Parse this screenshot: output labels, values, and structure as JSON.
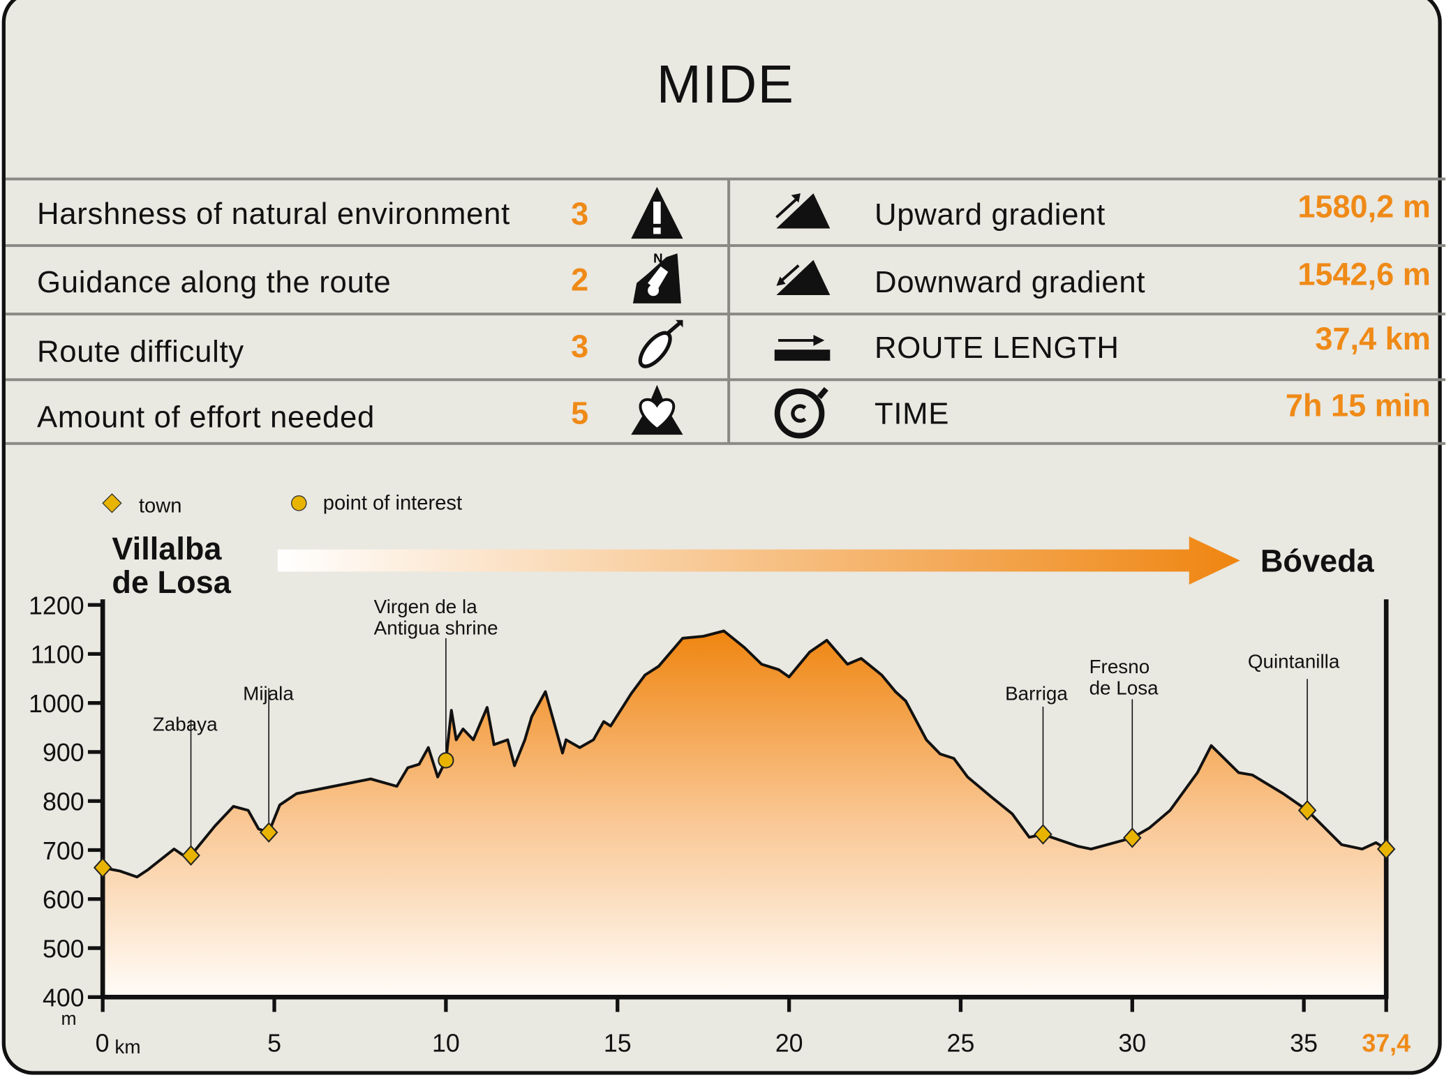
{
  "title": "MIDE",
  "mide": [
    {
      "label": "Harshness of natural environment",
      "value": "3",
      "icon": "warning-triangle-icon"
    },
    {
      "label": "Guidance along the route",
      "value": "2",
      "icon": "compass-map-icon"
    },
    {
      "label": "Route difficulty",
      "value": "3",
      "icon": "footprint-icon"
    },
    {
      "label": "Amount of effort needed",
      "value": "5",
      "icon": "heart-mountain-icon"
    }
  ],
  "stats": [
    {
      "label": "Upward gradient",
      "value": "1580,2 m",
      "icon": "upward-slope-icon"
    },
    {
      "label": "Downward gradient",
      "value": "1542,6 m",
      "icon": "downward-slope-icon"
    },
    {
      "label": "ROUTE LENGTH",
      "value": "37,4 km",
      "icon": "route-length-arrow-icon"
    },
    {
      "label": "TIME",
      "value": "7h 15 min",
      "icon": "stopwatch-icon"
    }
  ],
  "colors": {
    "accent": "#ef8a17",
    "marker": "#e8b400",
    "background": "#e9e8e1"
  },
  "chart_data": {
    "type": "area",
    "legend": [
      {
        "symbol": "diamond",
        "label": "town"
      },
      {
        "symbol": "circle",
        "label": "point of interest"
      }
    ],
    "legend_placement": "top-left",
    "start": "Villalba de Losa",
    "end": "Bóveda",
    "ylabel": "m",
    "xlabel": "km",
    "ylim": [
      400,
      1200
    ],
    "yticks": [
      "1200",
      "1100",
      "1000",
      "900",
      "800",
      "700",
      "600",
      "500",
      "400"
    ],
    "xlim": [
      0,
      37.4
    ],
    "xticks": [
      "0",
      "5",
      "10",
      "15",
      "20",
      "25",
      "30",
      "35"
    ],
    "xend_label": "37,4",
    "profile": [
      [
        0,
        664
      ],
      [
        0.51,
        657
      ],
      [
        1.0,
        645
      ],
      [
        1.32,
        660
      ],
      [
        2.08,
        702
      ],
      [
        2.35,
        689
      ],
      [
        2.57,
        689
      ],
      [
        3.0,
        726
      ],
      [
        3.27,
        749
      ],
      [
        3.81,
        789
      ],
      [
        4.24,
        781
      ],
      [
        4.54,
        743
      ],
      [
        4.84,
        736
      ],
      [
        5.16,
        792
      ],
      [
        5.65,
        815
      ],
      [
        7.81,
        845
      ],
      [
        8.57,
        830
      ],
      [
        8.89,
        868
      ],
      [
        9.22,
        875
      ],
      [
        9.49,
        909
      ],
      [
        9.76,
        849
      ],
      [
        10.0,
        883
      ],
      [
        10.16,
        985
      ],
      [
        10.3,
        925
      ],
      [
        10.5,
        947
      ],
      [
        10.8,
        925
      ],
      [
        11.2,
        991
      ],
      [
        11.4,
        915
      ],
      [
        11.8,
        925
      ],
      [
        12.0,
        872
      ],
      [
        12.3,
        925
      ],
      [
        12.5,
        972
      ],
      [
        12.9,
        1023
      ],
      [
        13.4,
        898
      ],
      [
        13.5,
        925
      ],
      [
        13.9,
        909
      ],
      [
        14.3,
        925
      ],
      [
        14.6,
        962
      ],
      [
        14.8,
        953
      ],
      [
        15.4,
        1019
      ],
      [
        15.8,
        1057
      ],
      [
        16.2,
        1075
      ],
      [
        16.9,
        1132
      ],
      [
        17.5,
        1136
      ],
      [
        18.1,
        1147
      ],
      [
        18.7,
        1113
      ],
      [
        19.2,
        1079
      ],
      [
        19.7,
        1068
      ],
      [
        20.0,
        1053
      ],
      [
        20.6,
        1104
      ],
      [
        21.1,
        1128
      ],
      [
        21.7,
        1079
      ],
      [
        22.1,
        1091
      ],
      [
        22.7,
        1057
      ],
      [
        23.1,
        1023
      ],
      [
        23.4,
        1004
      ],
      [
        24.0,
        925
      ],
      [
        24.4,
        896
      ],
      [
        24.8,
        887
      ],
      [
        25.2,
        849
      ],
      [
        25.9,
        808
      ],
      [
        26.5,
        774
      ],
      [
        27.0,
        726
      ],
      [
        27.4,
        732
      ],
      [
        28.4,
        708
      ],
      [
        28.8,
        702
      ],
      [
        30.0,
        725
      ],
      [
        30.5,
        745
      ],
      [
        31.1,
        781
      ],
      [
        31.9,
        858
      ],
      [
        32.3,
        913
      ],
      [
        33.1,
        858
      ],
      [
        33.5,
        853
      ],
      [
        34.4,
        815
      ],
      [
        35.1,
        781
      ],
      [
        36.1,
        711
      ],
      [
        36.7,
        702
      ],
      [
        37.1,
        715
      ],
      [
        37.4,
        702
      ]
    ],
    "points": [
      {
        "km": 0,
        "elev": 664,
        "type": "town",
        "name": ""
      },
      {
        "km": 2.57,
        "elev": 689,
        "type": "town",
        "name": "Zabaya"
      },
      {
        "km": 4.84,
        "elev": 736,
        "type": "town",
        "name": "Mijala"
      },
      {
        "km": 10.0,
        "elev": 883,
        "type": "poi",
        "name": "Virgen de la Antigua shrine"
      },
      {
        "km": 27.4,
        "elev": 732,
        "type": "town",
        "name": "Barriga"
      },
      {
        "km": 30.0,
        "elev": 725,
        "type": "town",
        "name": "Fresno de Losa"
      },
      {
        "km": 35.1,
        "elev": 781,
        "type": "town",
        "name": "Quintanilla"
      },
      {
        "km": 37.4,
        "elev": 702,
        "type": "town",
        "name": ""
      }
    ]
  }
}
